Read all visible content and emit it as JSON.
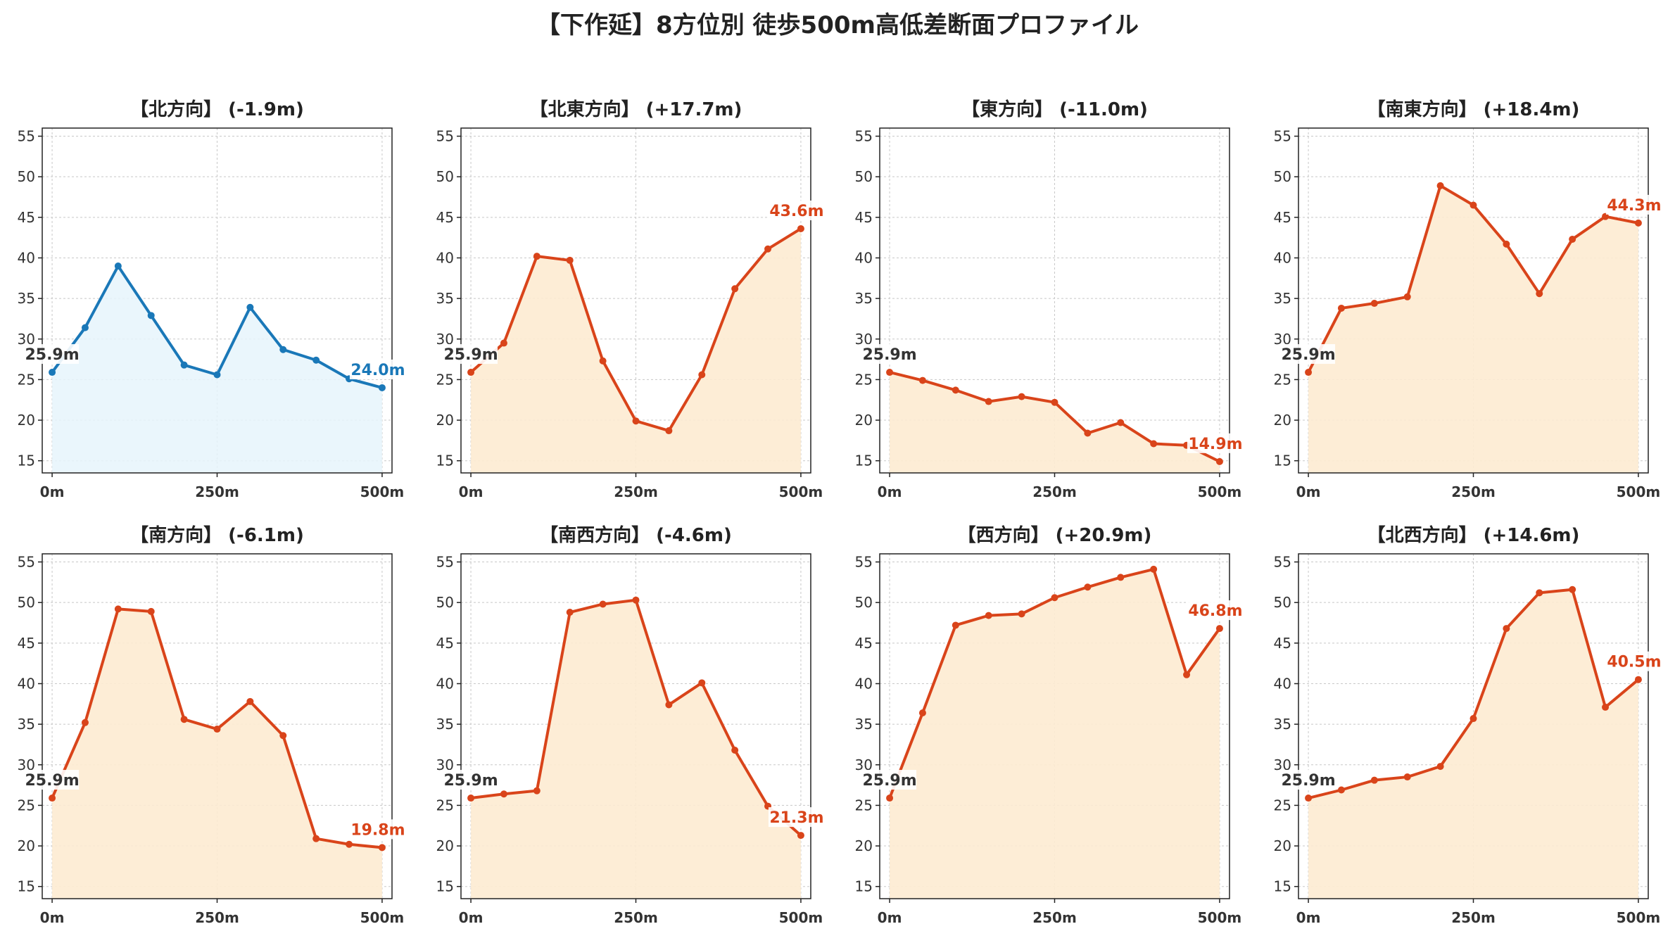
{
  "title": "【下作延】8方位別 徒歩500m高低差断面プロファイル",
  "colors": {
    "decline_line": "#1a78b8",
    "decline_fill": "#e6f4fb",
    "incline_line": "#d9441a",
    "incline_fill": "#fdebd2",
    "start_label": "#333333",
    "grid": "#c8c8c8"
  },
  "chart_data": [
    {
      "type": "area",
      "title": "【北方向】 (-1.9m)",
      "x": [
        0,
        50,
        100,
        150,
        200,
        250,
        300,
        350,
        400,
        450,
        500
      ],
      "values": [
        25.9,
        31.4,
        39.0,
        32.9,
        26.8,
        25.6,
        33.9,
        28.7,
        27.4,
        25.1,
        24.0
      ],
      "start_label": "25.9m",
      "end_label": "24.0m",
      "trend": "down",
      "xticks": [
        "0m",
        "250m",
        "500m"
      ],
      "ylim": [
        13.5,
        56
      ],
      "yticks": [
        15,
        20,
        25,
        30,
        35,
        40,
        45,
        50,
        55
      ],
      "grid": true
    },
    {
      "type": "area",
      "title": "【北東方向】 (+17.7m)",
      "x": [
        0,
        50,
        100,
        150,
        200,
        250,
        300,
        350,
        400,
        450,
        500
      ],
      "values": [
        25.9,
        29.5,
        40.2,
        39.7,
        27.3,
        19.9,
        18.7,
        25.6,
        36.2,
        41.1,
        43.6
      ],
      "start_label": "25.9m",
      "end_label": "43.6m",
      "trend": "up",
      "xticks": [
        "0m",
        "250m",
        "500m"
      ],
      "ylim": [
        13.5,
        56
      ],
      "yticks": [
        15,
        20,
        25,
        30,
        35,
        40,
        45,
        50,
        55
      ],
      "grid": true
    },
    {
      "type": "area",
      "title": "【東方向】 (-11.0m)",
      "x": [
        0,
        50,
        100,
        150,
        200,
        250,
        300,
        350,
        400,
        450,
        500
      ],
      "values": [
        25.9,
        24.9,
        23.7,
        22.3,
        22.9,
        22.2,
        18.4,
        19.7,
        17.1,
        16.9,
        14.9
      ],
      "start_label": "25.9m",
      "end_label": "14.9m",
      "trend": "down-orange",
      "xticks": [
        "0m",
        "250m",
        "500m"
      ],
      "ylim": [
        13.5,
        56
      ],
      "yticks": [
        15,
        20,
        25,
        30,
        35,
        40,
        45,
        50,
        55
      ],
      "grid": true
    },
    {
      "type": "area",
      "title": "【南東方向】 (+18.4m)",
      "x": [
        0,
        50,
        100,
        150,
        200,
        250,
        300,
        350,
        400,
        450,
        500
      ],
      "values": [
        25.9,
        33.8,
        34.4,
        35.2,
        48.9,
        46.5,
        41.7,
        35.6,
        42.3,
        45.1,
        44.3
      ],
      "start_label": "25.9m",
      "end_label": "44.3m",
      "trend": "up",
      "xticks": [
        "0m",
        "250m",
        "500m"
      ],
      "ylim": [
        13.5,
        56
      ],
      "yticks": [
        15,
        20,
        25,
        30,
        35,
        40,
        45,
        50,
        55
      ],
      "grid": true
    },
    {
      "type": "area",
      "title": "【南方向】 (-6.1m)",
      "x": [
        0,
        50,
        100,
        150,
        200,
        250,
        300,
        350,
        400,
        450,
        500
      ],
      "values": [
        25.9,
        35.2,
        49.2,
        48.9,
        35.6,
        34.4,
        37.8,
        33.6,
        20.9,
        20.2,
        19.8
      ],
      "start_label": "25.9m",
      "end_label": "19.8m",
      "trend": "down-orange",
      "xticks": [
        "0m",
        "250m",
        "500m"
      ],
      "ylim": [
        13.5,
        56
      ],
      "yticks": [
        15,
        20,
        25,
        30,
        35,
        40,
        45,
        50,
        55
      ],
      "grid": true
    },
    {
      "type": "area",
      "title": "【南西方向】 (-4.6m)",
      "x": [
        0,
        50,
        100,
        150,
        200,
        250,
        300,
        350,
        400,
        450,
        500
      ],
      "values": [
        25.9,
        26.4,
        26.8,
        48.8,
        49.8,
        50.3,
        37.4,
        40.1,
        31.8,
        24.9,
        21.3
      ],
      "start_label": "25.9m",
      "end_label": "21.3m",
      "trend": "down-orange",
      "xticks": [
        "0m",
        "250m",
        "500m"
      ],
      "ylim": [
        13.5,
        56
      ],
      "yticks": [
        15,
        20,
        25,
        30,
        35,
        40,
        45,
        50,
        55
      ],
      "grid": true
    },
    {
      "type": "area",
      "title": "【西方向】 (+20.9m)",
      "x": [
        0,
        50,
        100,
        150,
        200,
        250,
        300,
        350,
        400,
        450,
        500
      ],
      "values": [
        25.9,
        36.4,
        47.2,
        48.4,
        48.6,
        50.6,
        51.9,
        53.1,
        54.1,
        41.1,
        46.8
      ],
      "start_label": "25.9m",
      "end_label": "46.8m",
      "trend": "up",
      "xticks": [
        "0m",
        "250m",
        "500m"
      ],
      "ylim": [
        13.5,
        56
      ],
      "yticks": [
        15,
        20,
        25,
        30,
        35,
        40,
        45,
        50,
        55
      ],
      "grid": true
    },
    {
      "type": "area",
      "title": "【北西方向】 (+14.6m)",
      "x": [
        0,
        50,
        100,
        150,
        200,
        250,
        300,
        350,
        400,
        450,
        500
      ],
      "values": [
        25.9,
        26.9,
        28.1,
        28.5,
        29.8,
        35.7,
        46.8,
        51.2,
        51.6,
        37.1,
        40.5
      ],
      "start_label": "25.9m",
      "end_label": "40.5m",
      "trend": "up",
      "xticks": [
        "0m",
        "250m",
        "500m"
      ],
      "ylim": [
        13.5,
        56
      ],
      "yticks": [
        15,
        20,
        25,
        30,
        35,
        40,
        45,
        50,
        55
      ],
      "grid": true
    }
  ]
}
